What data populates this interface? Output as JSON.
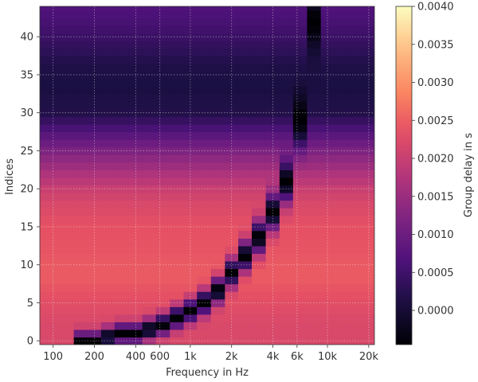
{
  "chart_data": {
    "type": "heatmap",
    "title": "",
    "xlabel": "Frequency in Hz",
    "ylabel": "Indices",
    "xscale": "log",
    "xlim": [
      80,
      22000
    ],
    "ylim": [
      -0.5,
      44
    ],
    "xticks": [
      100,
      200,
      400,
      600,
      1000,
      2000,
      4000,
      6000,
      10000,
      20000
    ],
    "xtick_labels": [
      "100",
      "200",
      "400",
      "600",
      "1k",
      "2k",
      "4k",
      "6k",
      "10k",
      "20k"
    ],
    "yticks": [
      0,
      5,
      10,
      15,
      20,
      25,
      30,
      35,
      40
    ],
    "ytick_labels": [
      "0",
      "5",
      "10",
      "15",
      "20",
      "25",
      "30",
      "35",
      "40"
    ],
    "grid": true,
    "colormap": "magma",
    "colorbar": {
      "label": "Group delay in s",
      "range": [
        -0.00045,
        0.004
      ],
      "ticks": [
        0.0,
        0.0005,
        0.001,
        0.0015,
        0.002,
        0.0025,
        0.003,
        0.0035,
        0.004
      ],
      "tick_labels": [
        "0.0000",
        "0.0005",
        "0.0010",
        "0.0015",
        "0.0020",
        "0.0025",
        "0.0030",
        "0.0035",
        "0.0040"
      ]
    },
    "index_profile_indices": [
      0,
      2,
      5,
      8,
      10,
      12,
      15,
      18,
      20,
      22,
      25,
      28,
      30,
      33,
      36,
      40,
      44
    ],
    "index_profile_delay": [
      0.0022,
      0.0022,
      0.0023,
      0.00245,
      0.00245,
      0.0024,
      0.00235,
      0.0022,
      0.002,
      0.0017,
      0.0012,
      0.0006,
      0.0002,
      0.0001,
      0.00015,
      0.00045,
      0.0007
    ],
    "notch_curve_frequency": [
      130,
      200,
      300,
      400,
      600,
      1000,
      1500,
      2000,
      3000,
      4000,
      5000,
      6000,
      7000,
      7500
    ],
    "notch_curve_index": [
      0,
      0,
      1,
      1,
      2,
      4,
      6,
      9,
      13,
      17,
      21,
      27,
      34,
      42
    ],
    "notch_min_delay": -0.00045,
    "sample_frequencies": [
      100,
      125,
      160,
      200,
      250,
      315,
      400,
      500,
      630,
      800,
      1000,
      1250,
      1600,
      2000,
      2500,
      3150,
      4000,
      5000,
      6300,
      8000,
      10000,
      12500,
      16000,
      20000
    ]
  }
}
